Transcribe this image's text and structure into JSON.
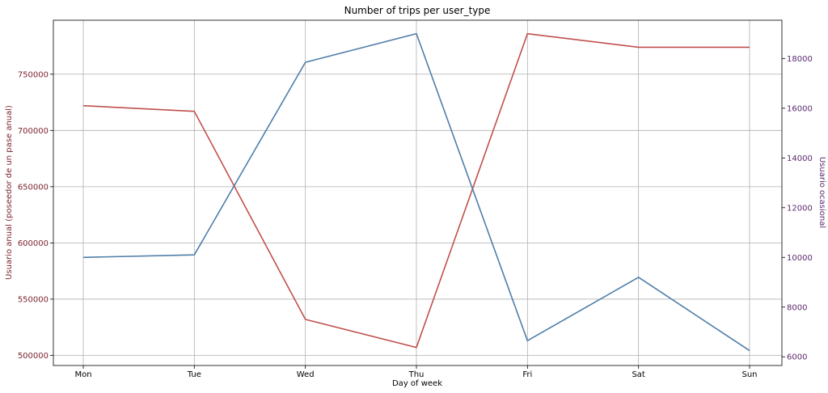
{
  "chart_data": {
    "type": "line",
    "title": "Number of trips per user_type",
    "xlabel": "Day of week",
    "ylabel_left": "Usuario anual (poseedor de un pase anual)",
    "ylabel_right": "Usuario ocasional",
    "categories": [
      "Mon",
      "Tue",
      "Wed",
      "Thu",
      "Fri",
      "Sat",
      "Sun"
    ],
    "ylim_left": [
      491000,
      798000
    ],
    "ylim_right": [
      5650,
      19540
    ],
    "yticks_left": [
      500000,
      550000,
      600000,
      650000,
      700000,
      750000
    ],
    "yticks_right": [
      6000,
      8000,
      10000,
      12000,
      14000,
      16000,
      18000
    ],
    "grid": true,
    "series": [
      {
        "axis": "left",
        "color": "#c0504d",
        "values": [
          722000,
          717000,
          532000,
          507000,
          786000,
          774000,
          774000
        ]
      },
      {
        "axis": "right",
        "color": "#4f7ea8",
        "values": [
          10000,
          10100,
          17850,
          19000,
          6650,
          9200,
          6250
        ]
      }
    ]
  }
}
